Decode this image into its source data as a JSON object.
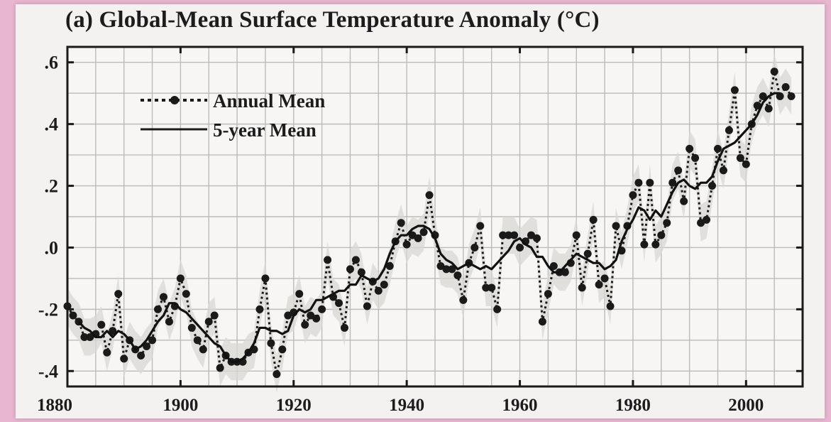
{
  "chart_data": {
    "type": "line",
    "title": "(a) Global-Mean Surface Temperature Anomaly (°C)",
    "xlabel": "",
    "ylabel": "",
    "xlim": [
      1880,
      2010
    ],
    "ylim": [
      -0.45,
      0.65
    ],
    "x_ticks": [
      1880,
      1900,
      1920,
      1940,
      1960,
      1980,
      2000
    ],
    "y_ticks": [
      -0.4,
      -0.2,
      0.0,
      0.2,
      0.4,
      0.6
    ],
    "y_tick_labels": [
      "-.4",
      "-.2",
      ".0",
      ".2",
      ".4",
      ".6"
    ],
    "grid": true,
    "legend_position": "top-left",
    "series": [
      {
        "name": "Annual Mean",
        "style": "dotted-with-markers",
        "x": [
          1880,
          1881,
          1882,
          1883,
          1884,
          1885,
          1886,
          1887,
          1888,
          1889,
          1890,
          1891,
          1892,
          1893,
          1894,
          1895,
          1896,
          1897,
          1898,
          1899,
          1900,
          1901,
          1902,
          1903,
          1904,
          1905,
          1906,
          1907,
          1908,
          1909,
          1910,
          1911,
          1912,
          1913,
          1914,
          1915,
          1916,
          1917,
          1918,
          1919,
          1920,
          1921,
          1922,
          1923,
          1924,
          1925,
          1926,
          1927,
          1928,
          1929,
          1930,
          1931,
          1932,
          1933,
          1934,
          1935,
          1936,
          1937,
          1938,
          1939,
          1940,
          1941,
          1942,
          1943,
          1944,
          1945,
          1946,
          1947,
          1948,
          1949,
          1950,
          1951,
          1952,
          1953,
          1954,
          1955,
          1956,
          1957,
          1958,
          1959,
          1960,
          1961,
          1962,
          1963,
          1964,
          1965,
          1966,
          1967,
          1968,
          1969,
          1970,
          1971,
          1972,
          1973,
          1974,
          1975,
          1976,
          1977,
          1978,
          1979,
          1980,
          1981,
          1982,
          1983,
          1984,
          1985,
          1986,
          1987,
          1988,
          1989,
          1990,
          1991,
          1992,
          1993,
          1994,
          1995,
          1996,
          1997,
          1998,
          1999,
          2000,
          2001,
          2002,
          2003,
          2004,
          2005,
          2006,
          2007,
          2008
        ],
        "values": [
          -0.19,
          -0.22,
          -0.24,
          -0.29,
          -0.29,
          -0.28,
          -0.25,
          -0.34,
          -0.27,
          -0.15,
          -0.36,
          -0.3,
          -0.33,
          -0.35,
          -0.32,
          -0.3,
          -0.2,
          -0.16,
          -0.24,
          -0.19,
          -0.1,
          -0.15,
          -0.26,
          -0.3,
          -0.33,
          -0.24,
          -0.22,
          -0.39,
          -0.35,
          -0.37,
          -0.37,
          -0.37,
          -0.34,
          -0.33,
          -0.2,
          -0.1,
          -0.31,
          -0.41,
          -0.33,
          -0.22,
          -0.21,
          -0.15,
          -0.25,
          -0.22,
          -0.23,
          -0.2,
          -0.04,
          -0.16,
          -0.18,
          -0.26,
          -0.07,
          -0.04,
          -0.08,
          -0.19,
          -0.11,
          -0.14,
          -0.12,
          -0.06,
          0.02,
          0.08,
          0.01,
          0.04,
          0.03,
          0.05,
          0.17,
          0.04,
          -0.06,
          -0.07,
          -0.07,
          -0.09,
          -0.17,
          -0.05,
          0.0,
          0.07,
          -0.13,
          -0.13,
          -0.2,
          0.04,
          0.04,
          0.04,
          0.0,
          0.02,
          0.04,
          0.03,
          -0.24,
          -0.15,
          -0.06,
          -0.08,
          -0.08,
          -0.05,
          0.04,
          -0.13,
          -0.02,
          0.09,
          -0.12,
          -0.1,
          -0.19,
          0.07,
          -0.01,
          0.07,
          0.17,
          0.21,
          0.01,
          0.21,
          0.01,
          0.04,
          0.08,
          0.21,
          0.25,
          0.15,
          0.32,
          0.29,
          0.08,
          0.09,
          0.2,
          0.32,
          0.25,
          0.38,
          0.51,
          0.29,
          0.27,
          0.4,
          0.46,
          0.49,
          0.45,
          0.57,
          0.49,
          0.52,
          0.49
        ]
      },
      {
        "name": "5-year Mean",
        "style": "solid",
        "x": [
          1882,
          1883,
          1884,
          1885,
          1886,
          1887,
          1888,
          1889,
          1890,
          1891,
          1892,
          1893,
          1894,
          1895,
          1896,
          1897,
          1898,
          1899,
          1900,
          1901,
          1902,
          1903,
          1904,
          1905,
          1906,
          1907,
          1908,
          1909,
          1910,
          1911,
          1912,
          1913,
          1914,
          1915,
          1916,
          1917,
          1918,
          1919,
          1920,
          1921,
          1922,
          1923,
          1924,
          1925,
          1926,
          1927,
          1928,
          1929,
          1930,
          1931,
          1932,
          1933,
          1934,
          1935,
          1936,
          1937,
          1938,
          1939,
          1940,
          1941,
          1942,
          1943,
          1944,
          1945,
          1946,
          1947,
          1948,
          1949,
          1950,
          1951,
          1952,
          1953,
          1954,
          1955,
          1956,
          1957,
          1958,
          1959,
          1960,
          1961,
          1962,
          1963,
          1964,
          1965,
          1966,
          1967,
          1968,
          1969,
          1970,
          1971,
          1972,
          1973,
          1974,
          1975,
          1976,
          1977,
          1978,
          1979,
          1980,
          1981,
          1982,
          1983,
          1984,
          1985,
          1986,
          1987,
          1988,
          1989,
          1990,
          1991,
          1992,
          1993,
          1994,
          1995,
          1996,
          1997,
          1998,
          1999,
          2000,
          2001,
          2002,
          2003,
          2004,
          2005,
          2006
        ],
        "values": [
          -0.24,
          -0.26,
          -0.27,
          -0.29,
          -0.29,
          -0.27,
          -0.29,
          -0.27,
          -0.28,
          -0.3,
          -0.33,
          -0.32,
          -0.3,
          -0.27,
          -0.24,
          -0.22,
          -0.18,
          -0.18,
          -0.2,
          -0.21,
          -0.23,
          -0.25,
          -0.27,
          -0.29,
          -0.31,
          -0.32,
          -0.35,
          -0.37,
          -0.37,
          -0.36,
          -0.34,
          -0.31,
          -0.26,
          -0.26,
          -0.27,
          -0.27,
          -0.28,
          -0.27,
          -0.22,
          -0.2,
          -0.21,
          -0.2,
          -0.17,
          -0.17,
          -0.16,
          -0.15,
          -0.14,
          -0.14,
          -0.12,
          -0.12,
          -0.09,
          -0.1,
          -0.11,
          -0.1,
          -0.07,
          -0.02,
          0.02,
          0.04,
          0.04,
          0.06,
          0.07,
          0.07,
          0.06,
          0.03,
          -0.02,
          -0.04,
          -0.05,
          -0.07,
          -0.06,
          -0.05,
          -0.06,
          -0.07,
          -0.06,
          -0.07,
          -0.05,
          -0.03,
          -0.01,
          0.02,
          0.03,
          0.01,
          0.0,
          -0.03,
          -0.03,
          -0.06,
          -0.08,
          -0.08,
          -0.06,
          -0.04,
          -0.02,
          -0.03,
          -0.04,
          -0.05,
          -0.05,
          -0.07,
          -0.06,
          -0.04,
          0.02,
          0.06,
          0.09,
          0.13,
          0.12,
          0.09,
          0.12,
          0.1,
          0.14,
          0.18,
          0.21,
          0.22,
          0.2,
          0.19,
          0.21,
          0.21,
          0.23,
          0.28,
          0.32,
          0.33,
          0.34,
          0.36,
          0.38,
          0.4,
          0.43,
          0.47,
          0.49,
          0.5,
          0.5
        ]
      }
    ]
  }
}
